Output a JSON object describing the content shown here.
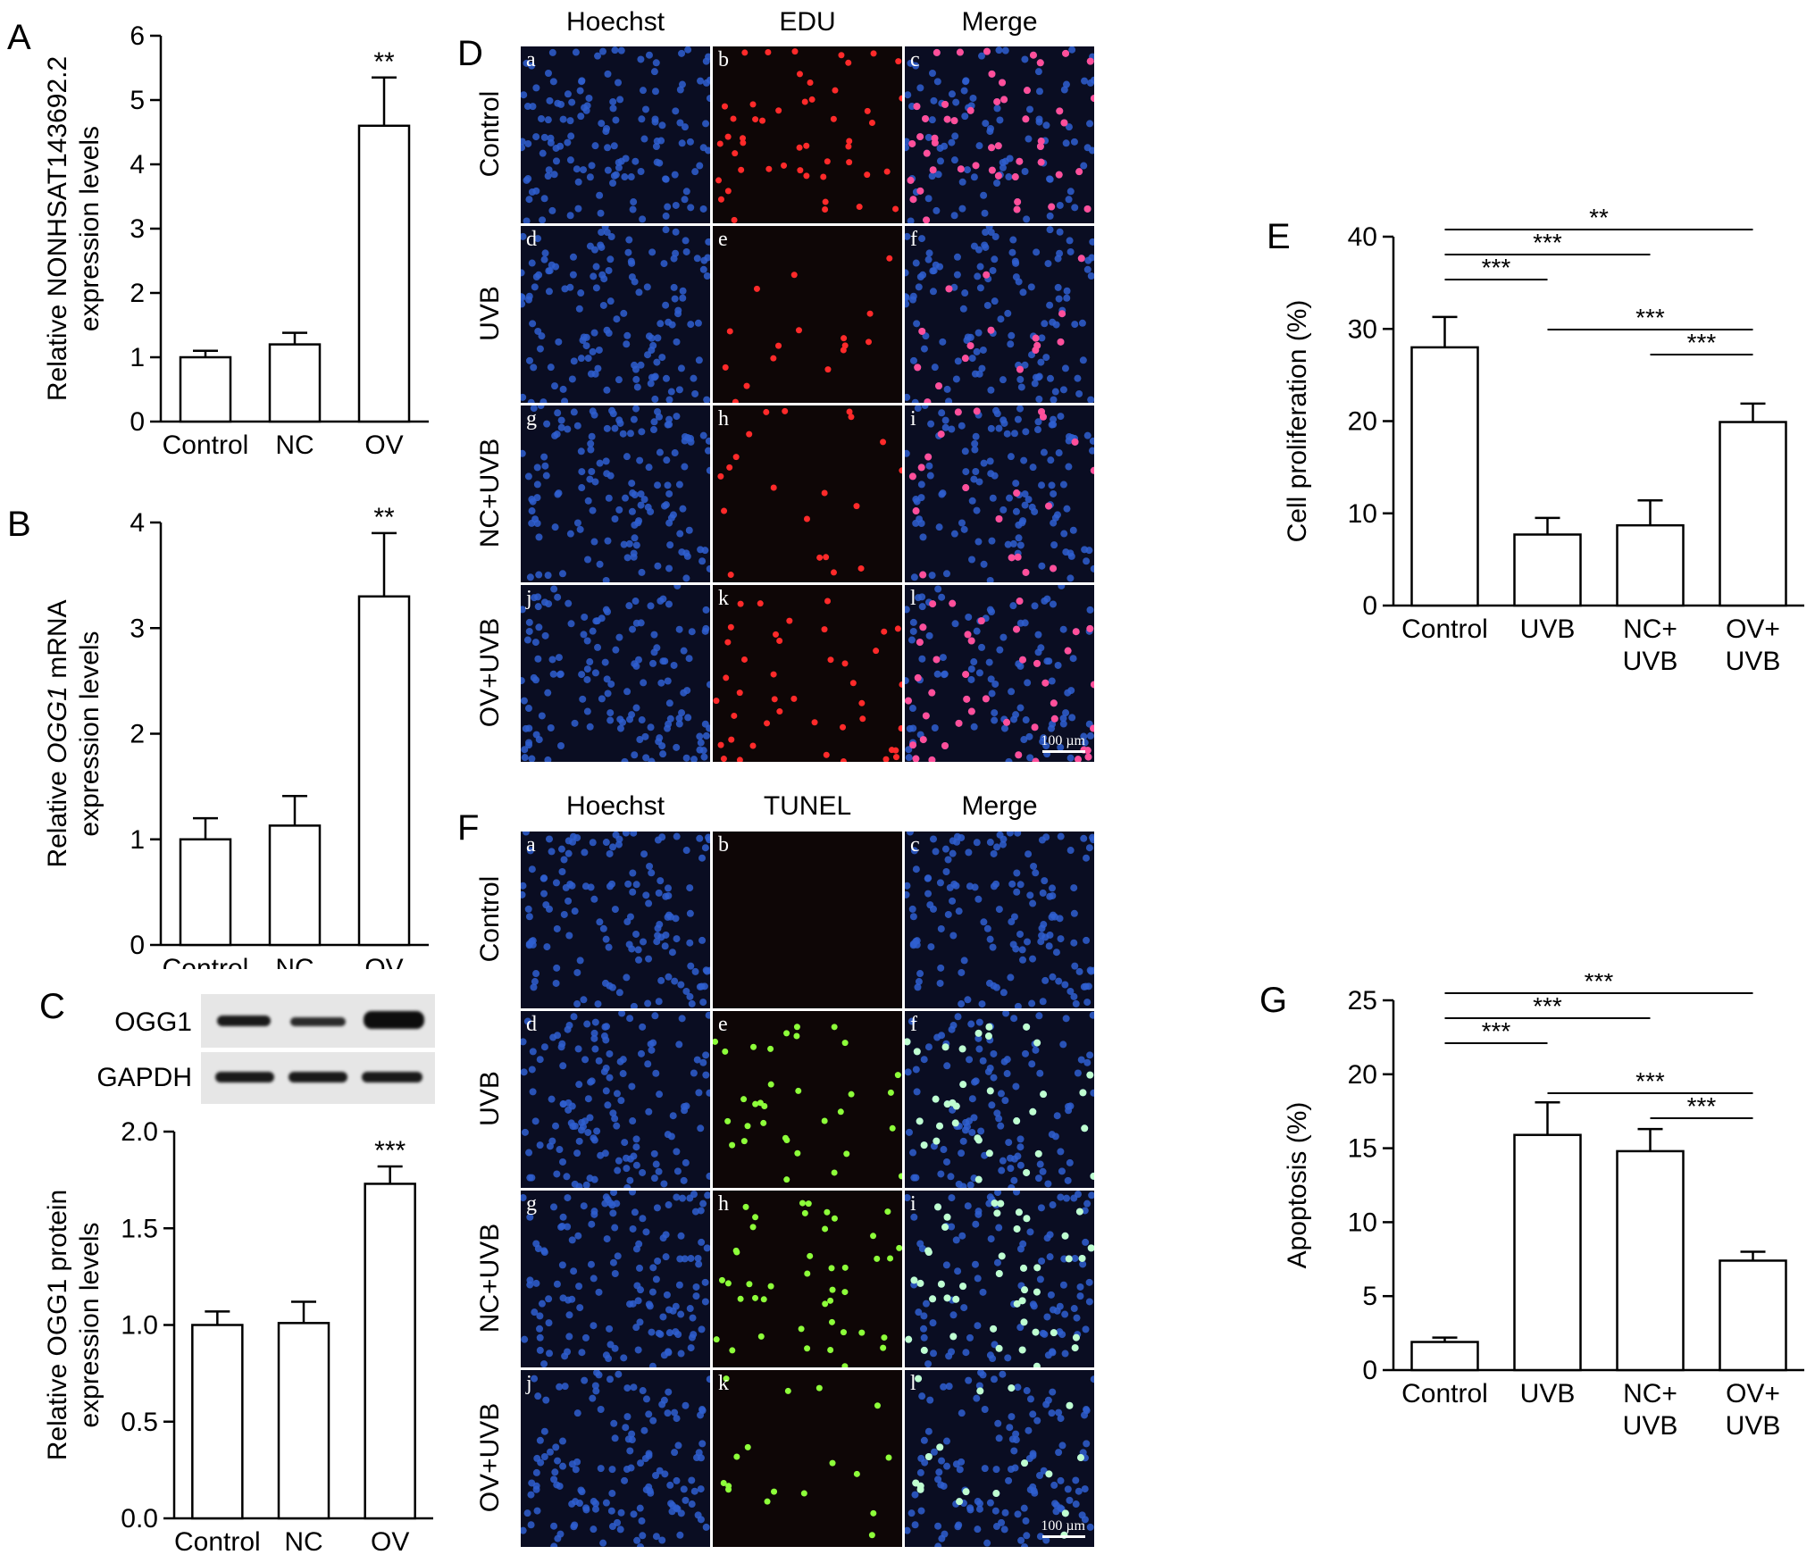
{
  "panels": {
    "A": "A",
    "B": "B",
    "C": "C",
    "D": "D",
    "E": "E",
    "F": "F",
    "G": "G"
  },
  "blot": {
    "labels": [
      "OGG1",
      "GAPDH"
    ]
  },
  "micro_D": {
    "columns": [
      "Hoechst",
      "EDU",
      "Merge"
    ],
    "rows": [
      "Control",
      "UVB",
      "NC+UVB",
      "OV+UVB"
    ],
    "letters": [
      "a",
      "b",
      "c",
      "d",
      "e",
      "f",
      "g",
      "h",
      "i",
      "j",
      "k",
      "l"
    ],
    "scalebar": "100 µm",
    "colors": {
      "hoechst": "#2f5fd0",
      "stain": "#ff2a2a",
      "merge_stain": "#ff4f9a"
    }
  },
  "micro_F": {
    "columns": [
      "Hoechst",
      "TUNEL",
      "Merge"
    ],
    "rows": [
      "Control",
      "UVB",
      "NC+UVB",
      "OV+UVB"
    ],
    "letters": [
      "a",
      "b",
      "c",
      "d",
      "e",
      "f",
      "g",
      "h",
      "i",
      "j",
      "k",
      "l"
    ],
    "scalebar": "100 µm",
    "colors": {
      "hoechst": "#2f5fd0",
      "stain": "#8dff3a",
      "merge_stain": "#bfffd0"
    }
  },
  "chart_data": [
    {
      "id": "A",
      "type": "bar",
      "categories": [
        "Control",
        "NC",
        "OV"
      ],
      "values": [
        1.0,
        1.2,
        4.6
      ],
      "errors": [
        0.1,
        0.18,
        0.75
      ],
      "significance": [
        "",
        "",
        "**"
      ],
      "ylabel": [
        "Relative NONHSAT143692.2",
        "expression levels"
      ],
      "ylim": [
        0,
        6
      ],
      "yticks": [
        0,
        1,
        2,
        3,
        4,
        5,
        6
      ],
      "ytick_labels": [
        "0",
        "1",
        "2",
        "3",
        "4",
        "5",
        "6"
      ],
      "grid": false
    },
    {
      "id": "B",
      "type": "bar",
      "categories": [
        "Control",
        "NC",
        "OV"
      ],
      "values": [
        1.0,
        1.13,
        3.3
      ],
      "errors": [
        0.2,
        0.28,
        0.6
      ],
      "significance": [
        "",
        "",
        "**"
      ],
      "ylabel": [
        "Relative OGG1 mRNA",
        "expression levels"
      ],
      "ylabel_italic": "OGG1",
      "ylim": [
        0,
        4
      ],
      "yticks": [
        0,
        1,
        2,
        3,
        4
      ],
      "ytick_labels": [
        "0",
        "1",
        "2",
        "3",
        "4"
      ],
      "grid": false
    },
    {
      "id": "C",
      "type": "bar",
      "categories": [
        "Control",
        "NC",
        "OV"
      ],
      "values": [
        1.0,
        1.01,
        1.73
      ],
      "errors": [
        0.07,
        0.11,
        0.09
      ],
      "significance": [
        "",
        "",
        "***"
      ],
      "ylabel": [
        "Relative OGG1 protein",
        "expression levels"
      ],
      "ylim": [
        0,
        2.0
      ],
      "yticks": [
        0,
        0.5,
        1.0,
        1.5,
        2.0
      ],
      "ytick_labels": [
        "0.0",
        "0.5",
        "1.0",
        "1.5",
        "2.0"
      ],
      "grid": false
    },
    {
      "id": "E",
      "type": "bar",
      "categories": [
        "Control",
        "UVB",
        "NC+\nUVB",
        "OV+\nUVB"
      ],
      "values": [
        28.0,
        7.7,
        8.7,
        19.9
      ],
      "errors": [
        3.3,
        1.8,
        2.7,
        2.0
      ],
      "comparisons": [
        {
          "from": 0,
          "to": 3,
          "stars": "**"
        },
        {
          "from": 0,
          "to": 2,
          "stars": "***"
        },
        {
          "from": 0,
          "to": 1,
          "stars": "***"
        },
        {
          "from": 1,
          "to": 3,
          "stars": "***"
        },
        {
          "from": 2,
          "to": 3,
          "stars": "***"
        }
      ],
      "ylabel": [
        "Cell proliferation (%)"
      ],
      "ylim": [
        0,
        40
      ],
      "yticks": [
        0,
        10,
        20,
        30,
        40
      ],
      "ytick_labels": [
        "0",
        "10",
        "20",
        "30",
        "40"
      ],
      "grid": false
    },
    {
      "id": "G",
      "type": "bar",
      "categories": [
        "Control",
        "UVB",
        "NC+\nUVB",
        "OV+\nUVB"
      ],
      "values": [
        1.9,
        15.9,
        14.8,
        7.4
      ],
      "errors": [
        0.3,
        2.2,
        1.5,
        0.6
      ],
      "comparisons": [
        {
          "from": 0,
          "to": 3,
          "stars": "***"
        },
        {
          "from": 0,
          "to": 2,
          "stars": "***"
        },
        {
          "from": 0,
          "to": 1,
          "stars": "***"
        },
        {
          "from": 1,
          "to": 3,
          "stars": "***"
        },
        {
          "from": 2,
          "to": 3,
          "stars": "***"
        }
      ],
      "ylabel": [
        "Apoptosis (%)"
      ],
      "ylim": [
        0,
        25
      ],
      "yticks": [
        0,
        5,
        10,
        15,
        20,
        25
      ],
      "ytick_labels": [
        "0",
        "5",
        "10",
        "15",
        "20",
        "25"
      ],
      "grid": false
    }
  ]
}
